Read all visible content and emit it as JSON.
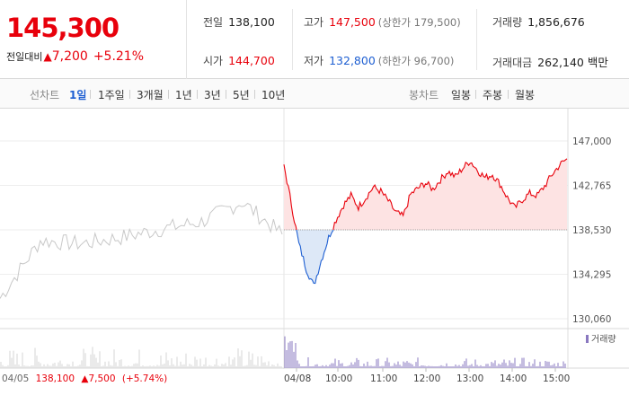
{
  "header": {
    "current_price": "145,300",
    "change_label": "전일대비",
    "change_arrow": "▲",
    "change_value": "7,200",
    "change_percent": "+5.21%",
    "prev_close": {
      "label": "전일",
      "value": "138,100"
    },
    "high": {
      "label": "고가",
      "value": "147,500",
      "limit": "(상한가 179,500)"
    },
    "volume": {
      "label": "거래량",
      "value": "1,856,676"
    },
    "open": {
      "label": "시가",
      "value": "144,700"
    },
    "low": {
      "label": "저가",
      "value": "132,800",
      "limit": "(하한가 96,700)"
    },
    "turnover": {
      "label": "거래대금",
      "value": "262,140 백만"
    }
  },
  "toolbar": {
    "line_label": "선차트",
    "line_periods": [
      "1일",
      "1주일",
      "3개월",
      "1년",
      "3년",
      "5년",
      "10년"
    ],
    "active_period": "1일",
    "candle_label": "봉차트",
    "candle_periods": [
      "일봉",
      "주봉",
      "월봉"
    ]
  },
  "colors": {
    "up": "#e8000b",
    "down": "#1e5fd2",
    "prev_day_line": "#c8c8c8",
    "volume_bar": "#8a78c0"
  },
  "chart_data": {
    "type": "line",
    "y_ticks": [
      "147,000",
      "142,765",
      "138,530",
      "134,295",
      "130,060"
    ],
    "ylim": [
      130060,
      147000
    ],
    "baseline": 138530,
    "x_tick_labels": [
      "04/05",
      "04/08",
      "10:00",
      "11:00",
      "12:00",
      "13:00",
      "14:00",
      "15:00"
    ],
    "prev_session_caption": {
      "date": "04/05",
      "close": "138,100",
      "change": "▲7,500",
      "change_pct": "(+5.74%)"
    },
    "volume_legend": "거래량",
    "series": [
      {
        "x": [
          "04/05 09:00",
          "04/05 10:00",
          "04/05 11:00",
          "04/05 12:00",
          "04/05 13:00",
          "04/05 14:00",
          "04/05 15:00",
          "04/05 15:30"
        ],
        "values": [
          132000,
          137500,
          137200,
          137800,
          138600,
          139300,
          141200,
          138100
        ]
      },
      {
        "x": [
          "09:00",
          "09:10",
          "09:20",
          "09:30",
          "09:40",
          "09:50",
          "10:00",
          "10:10",
          "10:20",
          "10:30",
          "10:40",
          "10:50",
          "11:00",
          "11:10",
          "11:20",
          "11:30",
          "11:40",
          "11:50",
          "12:00",
          "12:10",
          "12:20",
          "12:30",
          "12:40",
          "12:50",
          "13:00",
          "13:10",
          "13:20",
          "13:30",
          "13:40",
          "13:50",
          "14:00",
          "14:10",
          "14:20",
          "14:30",
          "14:40",
          "14:50",
          "15:00",
          "15:10",
          "15:20"
        ],
        "values": [
          144700,
          141000,
          137200,
          134800,
          133200,
          135600,
          137800,
          139500,
          140900,
          141800,
          140700,
          141600,
          142600,
          142200,
          141300,
          140200,
          139800,
          141900,
          142500,
          143000,
          142400,
          143300,
          144100,
          143600,
          144400,
          145100,
          144200,
          143500,
          143800,
          142900,
          141600,
          140600,
          141400,
          142000,
          141800,
          142700,
          143800,
          144700,
          145300
        ]
      }
    ]
  }
}
